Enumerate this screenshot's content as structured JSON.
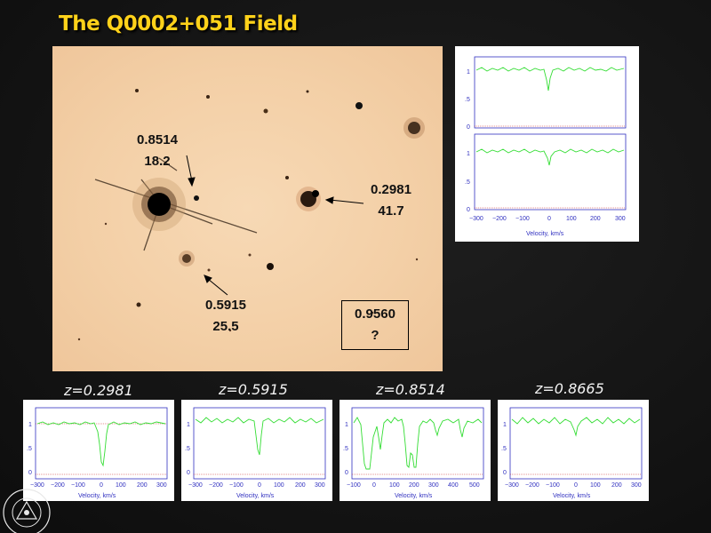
{
  "title": "The Q0002+051 Field",
  "field": {
    "labels": [
      {
        "z": "0.8514",
        "value": "18.2"
      },
      {
        "z": "0.2981",
        "value": "41.7"
      },
      {
        "z": "0.5915",
        "value": "25.5"
      },
      {
        "z": "0.9560",
        "value": "?"
      }
    ]
  },
  "spectra": {
    "axis_title": "Velocity, km/s",
    "y_ticks": [
      "1",
      ".5",
      "0"
    ],
    "x_ticks_300": [
      "−300",
      "−200",
      "−100",
      "0",
      "100",
      "200",
      "300"
    ],
    "x_ticks_500": [
      "−100",
      "0",
      "100",
      "200",
      "300",
      "400",
      "500"
    ],
    "redshifts": [
      "z=0.2981",
      "z=0.5915",
      "z=0.8514",
      "z=0.8665"
    ]
  },
  "seal": {
    "text": "NEW MEXICO STATE UNIVERSITY"
  },
  "colors": {
    "title": "#ffd21a",
    "spectrum": "#33dd33",
    "axis": "#3030c0",
    "continuum": "#cc2222"
  }
}
